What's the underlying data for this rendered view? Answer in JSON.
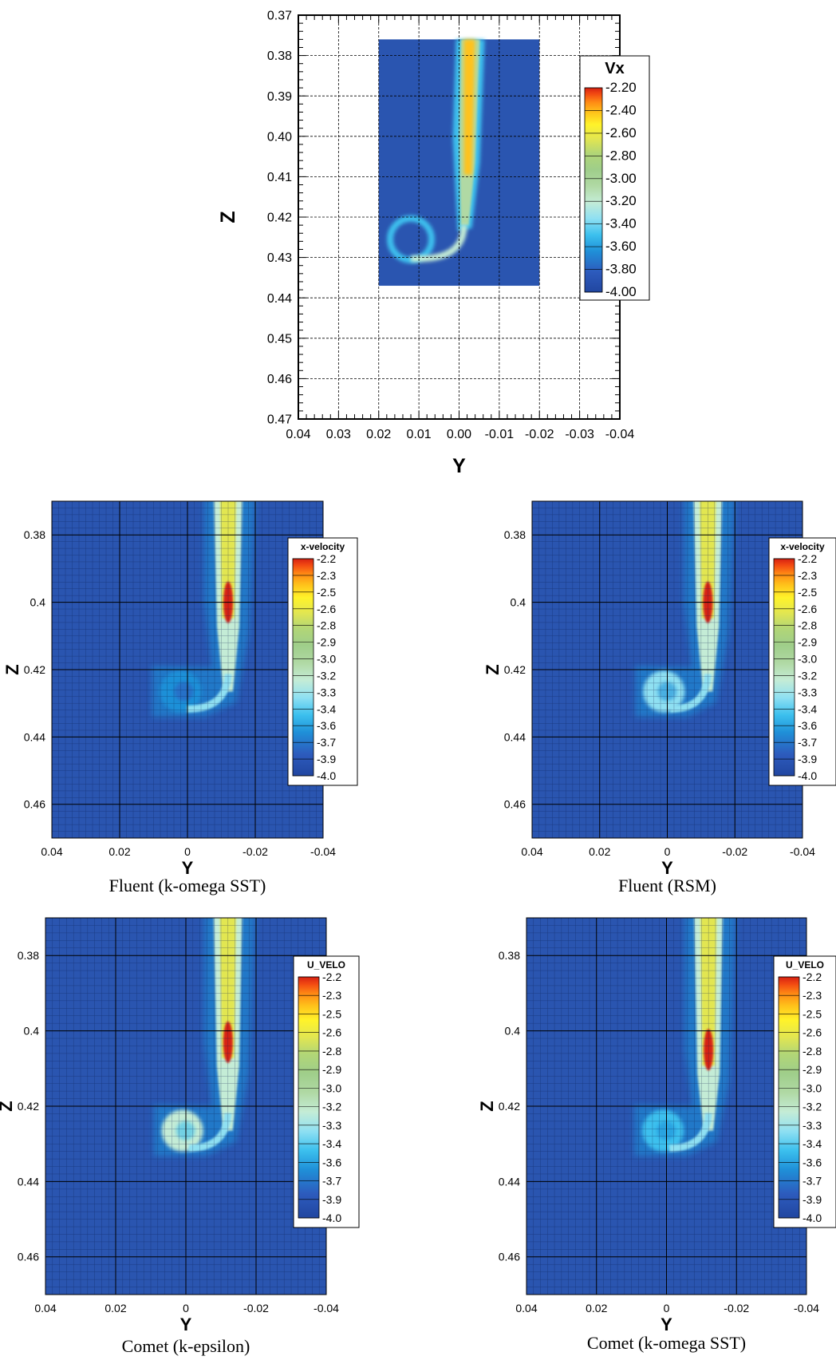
{
  "colors": {
    "background_field": "#2a55b0",
    "colormap": [
      "#2146a0",
      "#2d5bbd",
      "#1f90d8",
      "#3cc0ee",
      "#8fe0f2",
      "#c4ecd6",
      "#b0d9a4",
      "#9fce8a",
      "#b2d676",
      "#e2e651",
      "#fff32a",
      "#ffc21a",
      "#ff8a14",
      "#f24a12",
      "#d62012"
    ]
  },
  "chart_data": [
    {
      "id": "experiment",
      "type": "heatmap",
      "title": "",
      "xlabel": "Y",
      "ylabel": "Z",
      "xlim": [
        0.04,
        -0.04
      ],
      "ylim": [
        0.47,
        0.37
      ],
      "x_ticks": [
        "0.04",
        "0.03",
        "0.02",
        "0.01",
        "0.00",
        "-0.01",
        "-0.02",
        "-0.03",
        "-0.04"
      ],
      "y_ticks": [
        "0.37",
        "0.38",
        "0.39",
        "0.40",
        "0.41",
        "0.42",
        "0.43",
        "0.44",
        "0.45",
        "0.46",
        "0.47"
      ],
      "grid": true,
      "legend": {
        "title": "Vx",
        "position": "right",
        "levels": [
          "-2.20",
          "-2.40",
          "-2.60",
          "-2.80",
          "-3.00",
          "-3.20",
          "-3.40",
          "-3.60",
          "-3.80",
          "-4.00"
        ]
      },
      "measured_region": {
        "y_range": [
          0.02,
          -0.02
        ],
        "z_range": [
          0.376,
          0.437
        ]
      },
      "field_range": [
        -4.0,
        -2.2
      ],
      "features": {
        "jet_center_y": -0.002,
        "jet_peak_vx": -2.6,
        "vortex_center": {
          "y": 0.012,
          "z": 0.4255
        },
        "vortex_vx": -3.6
      }
    },
    {
      "id": "fluent-sst",
      "type": "heatmap",
      "title": "Fluent (k-omega SST)",
      "xlabel": "Y",
      "ylabel": "Z",
      "xlim": [
        0.04,
        -0.04
      ],
      "ylim": [
        0.47,
        0.37
      ],
      "x_ticks": [
        "0.04",
        "0.02",
        "0",
        "-0.02",
        "-0.04"
      ],
      "y_ticks": [
        "0.38",
        "0.4",
        "0.42",
        "0.44",
        "0.46"
      ],
      "grid": true,
      "legend": {
        "title": "x-velocity",
        "position": "right",
        "levels": [
          "-2.2",
          "-2.3",
          "-2.5",
          "-2.6",
          "-2.8",
          "-2.9",
          "-3.0",
          "-3.2",
          "-3.3",
          "-3.4",
          "-3.6",
          "-3.7",
          "-3.9",
          "-4.0"
        ]
      },
      "field_range": [
        -4.0,
        -2.2
      ],
      "features": {
        "jet_center_y": -0.012,
        "jet_peak_vx": -2.2,
        "jet_peak_z": 0.4,
        "vortex_center": {
          "y": 0.002,
          "z": 0.4265
        },
        "vortex_vx": -3.7
      }
    },
    {
      "id": "fluent-rsm",
      "type": "heatmap",
      "title": "Fluent (RSM)",
      "xlabel": "Y",
      "ylabel": "Z",
      "xlim": [
        0.04,
        -0.04
      ],
      "ylim": [
        0.47,
        0.37
      ],
      "x_ticks": [
        "0.04",
        "0.02",
        "0",
        "-0.02",
        "-0.04"
      ],
      "y_ticks": [
        "0.38",
        "0.4",
        "0.42",
        "0.44",
        "0.46"
      ],
      "grid": true,
      "legend": {
        "title": "x-velocity",
        "position": "right",
        "levels": [
          "-2.2",
          "-2.3",
          "-2.5",
          "-2.6",
          "-2.8",
          "-2.9",
          "-3.0",
          "-3.2",
          "-3.3",
          "-3.4",
          "-3.6",
          "-3.7",
          "-3.9",
          "-4.0"
        ]
      },
      "field_range": [
        -4.0,
        -2.2
      ],
      "features": {
        "jet_center_y": -0.012,
        "jet_peak_vx": -2.2,
        "jet_peak_z": 0.4,
        "vortex_center": {
          "y": 0.001,
          "z": 0.4265
        },
        "vortex_vx": -3.5
      }
    },
    {
      "id": "comet-ke",
      "type": "heatmap",
      "title": "Comet (k-epsilon)",
      "xlabel": "Y",
      "ylabel": "Z",
      "xlim": [
        0.04,
        -0.04
      ],
      "ylim": [
        0.47,
        0.37
      ],
      "x_ticks": [
        "0.04",
        "0.02",
        "0",
        "-0.02",
        "-0.04"
      ],
      "y_ticks": [
        "0.38",
        "0.4",
        "0.42",
        "0.44",
        "0.46"
      ],
      "grid": true,
      "legend": {
        "title": "U_VELO",
        "position": "right",
        "levels": [
          "-2.2",
          "-2.3",
          "-2.5",
          "-2.6",
          "-2.8",
          "-2.9",
          "-3.0",
          "-3.2",
          "-3.3",
          "-3.4",
          "-3.6",
          "-3.7",
          "-3.9",
          "-4.0"
        ]
      },
      "field_range": [
        -4.0,
        -2.2
      ],
      "features": {
        "jet_center_y": -0.012,
        "jet_peak_vx": -2.2,
        "jet_peak_z": 0.403,
        "vortex_center": {
          "y": 0.001,
          "z": 0.4265
        },
        "vortex_vx": -3.4
      }
    },
    {
      "id": "comet-sst",
      "type": "heatmap",
      "title": "Comet (k-omega SST)",
      "xlabel": "Y",
      "ylabel": "Z",
      "xlim": [
        0.04,
        -0.04
      ],
      "ylim": [
        0.47,
        0.37
      ],
      "x_ticks": [
        "0.04",
        "0.02",
        "0",
        "-0.02",
        "-0.04"
      ],
      "y_ticks": [
        "0.38",
        "0.4",
        "0.42",
        "0.44",
        "0.46"
      ],
      "grid": true,
      "legend": {
        "title": "U_VELO",
        "position": "right",
        "levels": [
          "-2.2",
          "-2.3",
          "-2.5",
          "-2.6",
          "-2.8",
          "-2.9",
          "-3.0",
          "-3.2",
          "-3.3",
          "-3.4",
          "-3.6",
          "-3.7",
          "-3.9",
          "-4.0"
        ]
      },
      "field_range": [
        -4.0,
        -2.2
      ],
      "features": {
        "jet_center_y": -0.012,
        "jet_peak_vx": -2.2,
        "jet_peak_z": 0.405,
        "vortex_center": {
          "y": 0.001,
          "z": 0.4265
        },
        "vortex_vx": -3.6
      }
    }
  ]
}
